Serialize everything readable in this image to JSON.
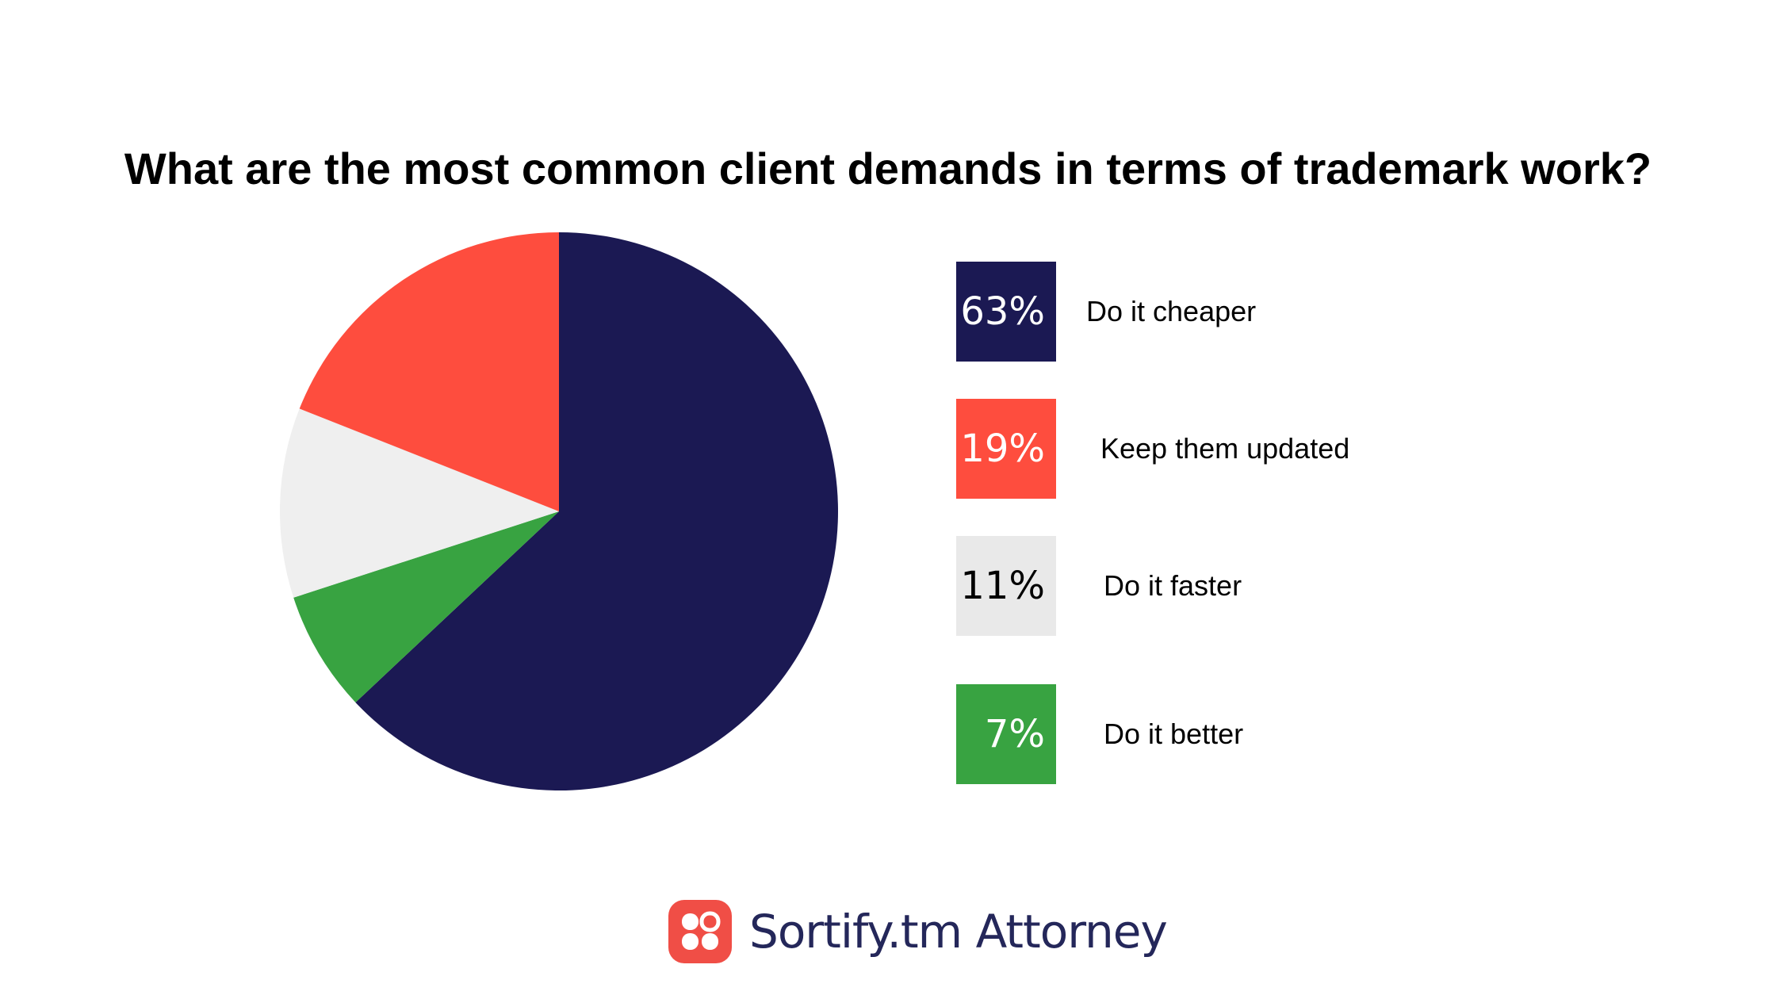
{
  "chart_data": {
    "type": "pie",
    "title": "What are the most common client demands in terms of trademark work?",
    "slices": [
      {
        "label": "Do it cheaper",
        "value": 63,
        "display": "63%",
        "color": "#1b1953",
        "text_color": "#ffffff"
      },
      {
        "label": "Keep them updated",
        "value": 19,
        "display": "19%",
        "color": "#fe4d3e",
        "text_color": "#ffffff"
      },
      {
        "label": "Do it faster",
        "value": 11,
        "display": "11%",
        "color": "#e9e9e9",
        "text_color": "#000000"
      },
      {
        "label": "Do it better",
        "value": 7,
        "display": "7%",
        "color": "#38a341",
        "text_color": "#ffffff"
      }
    ],
    "pie_order": [
      "Do it cheaper",
      "Do it better",
      "Do it faster",
      "Keep them updated"
    ],
    "pie_colors": {
      "Do it faster": "#efefef"
    },
    "legend_position": "right"
  },
  "brand": {
    "name": "Sortify.tm Attorney",
    "logo_color": "#f04e46",
    "logo_icon": "four-petal-logo-icon"
  }
}
